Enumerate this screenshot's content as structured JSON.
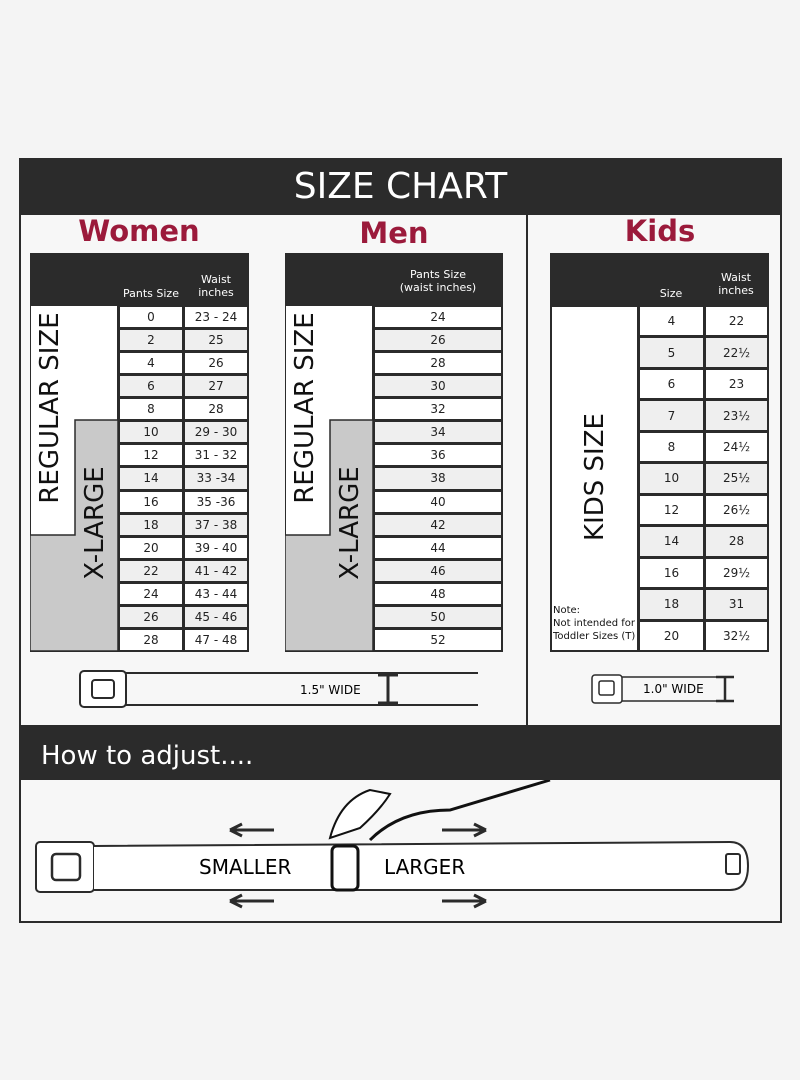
{
  "header": {
    "title": "SIZE CHART"
  },
  "women": {
    "title": "Women",
    "col1": "Pants Size",
    "col2_line1": "Waist",
    "col2_line2": "inches",
    "regular_label": "REGULAR SIZE",
    "xlarge_label": "X-LARGE",
    "rows": [
      [
        "0",
        "23 - 24"
      ],
      [
        "2",
        "25"
      ],
      [
        "4",
        "26"
      ],
      [
        "6",
        "27"
      ],
      [
        "8",
        "28"
      ],
      [
        "10",
        "29 - 30"
      ],
      [
        "12",
        "31 - 32"
      ],
      [
        "14",
        "33 -34"
      ],
      [
        "16",
        "35 -36"
      ],
      [
        "18",
        "37 - 38"
      ],
      [
        "20",
        "39 - 40"
      ],
      [
        "22",
        "41 - 42"
      ],
      [
        "24",
        "43 - 44"
      ],
      [
        "26",
        "45 - 46"
      ],
      [
        "28",
        "47 - 48"
      ]
    ],
    "belt_width": "1.5\" WIDE"
  },
  "men": {
    "title": "Men",
    "col1_line1": "Pants Size",
    "col1_line2": "(waist inches)",
    "regular_label": "REGULAR SIZE",
    "xlarge_label": "X-LARGE",
    "rows": [
      "24",
      "26",
      "28",
      "30",
      "32",
      "34",
      "36",
      "38",
      "40",
      "42",
      "44",
      "46",
      "48",
      "50",
      "52"
    ]
  },
  "kids": {
    "title": "Kids",
    "col1": "Size",
    "col2_line1": "Waist",
    "col2_line2": "inches",
    "label": "KIDS SIZE",
    "note_line1": "Note:",
    "note_line2": "Not intended for",
    "note_line3": "Toddler Sizes (T)",
    "rows": [
      [
        "4",
        "22"
      ],
      [
        "5",
        "22½"
      ],
      [
        "6",
        "23"
      ],
      [
        "7",
        "23½"
      ],
      [
        "8",
        "24½"
      ],
      [
        "10",
        "25½"
      ],
      [
        "12",
        "26½"
      ],
      [
        "14",
        "28"
      ],
      [
        "16",
        "29½"
      ],
      [
        "18",
        "31"
      ],
      [
        "20",
        "32½"
      ]
    ],
    "belt_width": "1.0\" WIDE"
  },
  "adjust": {
    "title": "How to adjust....",
    "smaller": "SMALLER",
    "larger": "LARGER"
  }
}
